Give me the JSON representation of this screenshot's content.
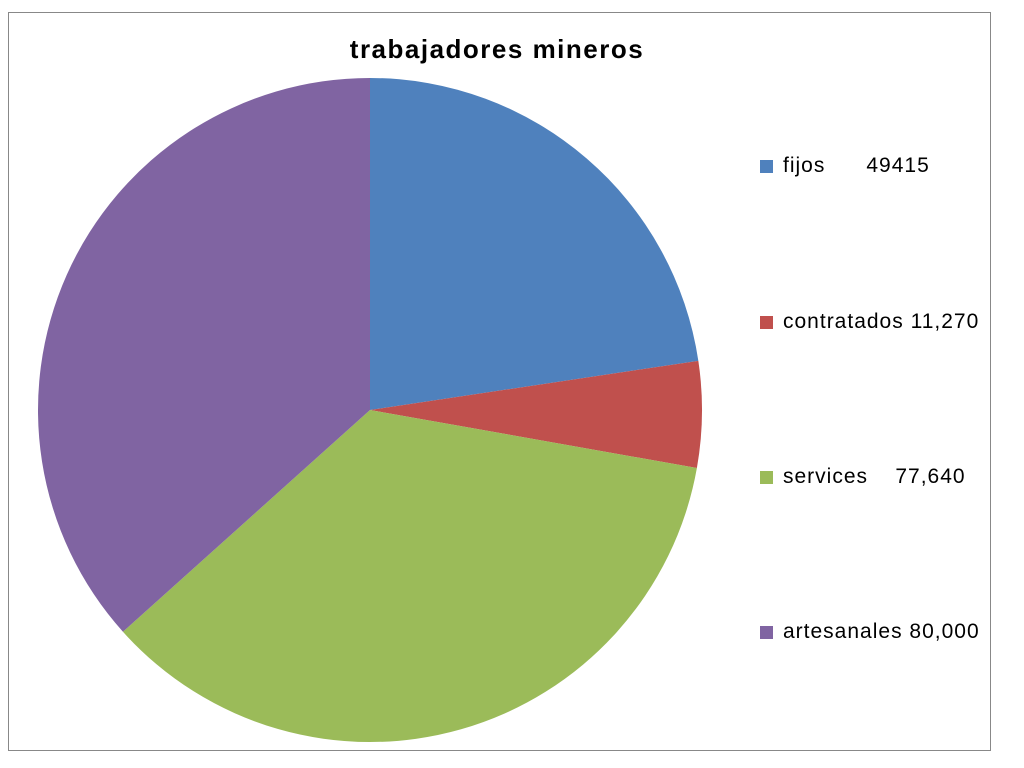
{
  "chart_data": {
    "type": "pie",
    "title": "trabajadores mineros",
    "categories": [
      "fijos      49415",
      "contratados 11,270",
      "services    77,640",
      "artesanales 80,000"
    ],
    "values": [
      49415,
      11270,
      77640,
      80000
    ],
    "colors": [
      "#4f81bd",
      "#c0504d",
      "#9bbb59",
      "#8064a2"
    ],
    "legend": "right"
  }
}
